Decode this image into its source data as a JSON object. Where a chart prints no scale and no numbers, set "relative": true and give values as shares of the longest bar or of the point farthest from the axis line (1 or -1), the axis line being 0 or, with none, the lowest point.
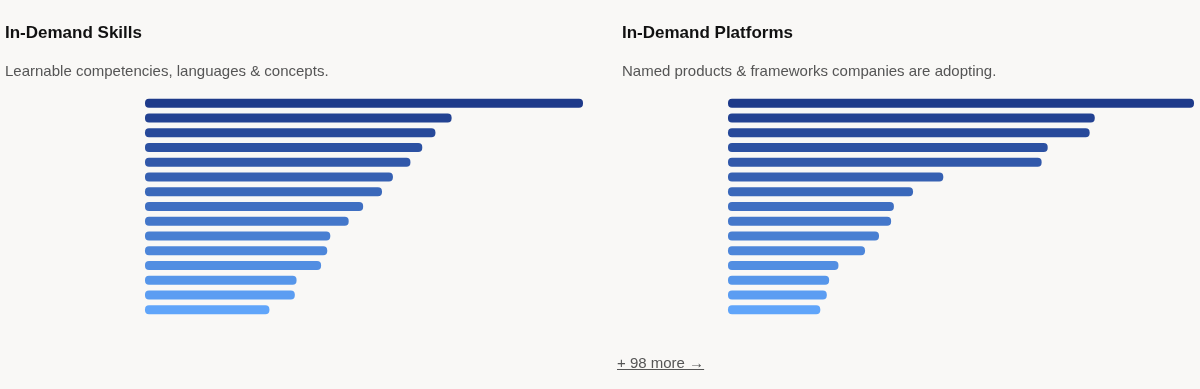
{
  "chart_data": [
    {
      "type": "bar",
      "title": "In-Demand Skills",
      "subtitle": "Learnable competencies, languages & concepts.",
      "orientation": "horizontal",
      "relative": true,
      "categories": [
        null,
        null,
        null,
        null,
        null,
        null,
        null,
        null,
        null,
        null,
        null,
        null,
        null,
        null,
        null
      ],
      "values": [
        1,
        0.7,
        0.663,
        0.633,
        0.606,
        0.566,
        0.541,
        0.498,
        0.465,
        0.423,
        0.416,
        0.402,
        0.346,
        0.342,
        0.284
      ],
      "colors": [
        "#1e3a8a",
        "#234292",
        "#27499a",
        "#2c51a2",
        "#3158aa",
        "#3660b2",
        "#3a68ba",
        "#3f6fc2",
        "#4477ca",
        "#487fd2",
        "#4d86da",
        "#528ee2",
        "#5696ea",
        "#5b9df2",
        "#60a5fa"
      ]
    },
    {
      "type": "bar",
      "title": "In-Demand Platforms",
      "subtitle": "Named products & frameworks companies are adopting.",
      "orientation": "horizontal",
      "relative": true,
      "categories": [
        null,
        null,
        null,
        null,
        null,
        null,
        null,
        null,
        null,
        null,
        null,
        null,
        null,
        null,
        null
      ],
      "values": [
        1,
        0.787,
        0.776,
        0.686,
        0.673,
        0.462,
        0.397,
        0.356,
        0.35,
        0.324,
        0.294,
        0.237,
        0.217,
        0.212,
        0.198
      ],
      "colors": [
        "#1e3a8a",
        "#234292",
        "#27499a",
        "#2c51a2",
        "#3158aa",
        "#3660b2",
        "#3a68ba",
        "#3f6fc2",
        "#4477ca",
        "#487fd2",
        "#4d86da",
        "#528ee2",
        "#5696ea",
        "#5b9df2",
        "#60a5fa"
      ],
      "annotations": [
        "+ 98 more →"
      ]
    }
  ]
}
